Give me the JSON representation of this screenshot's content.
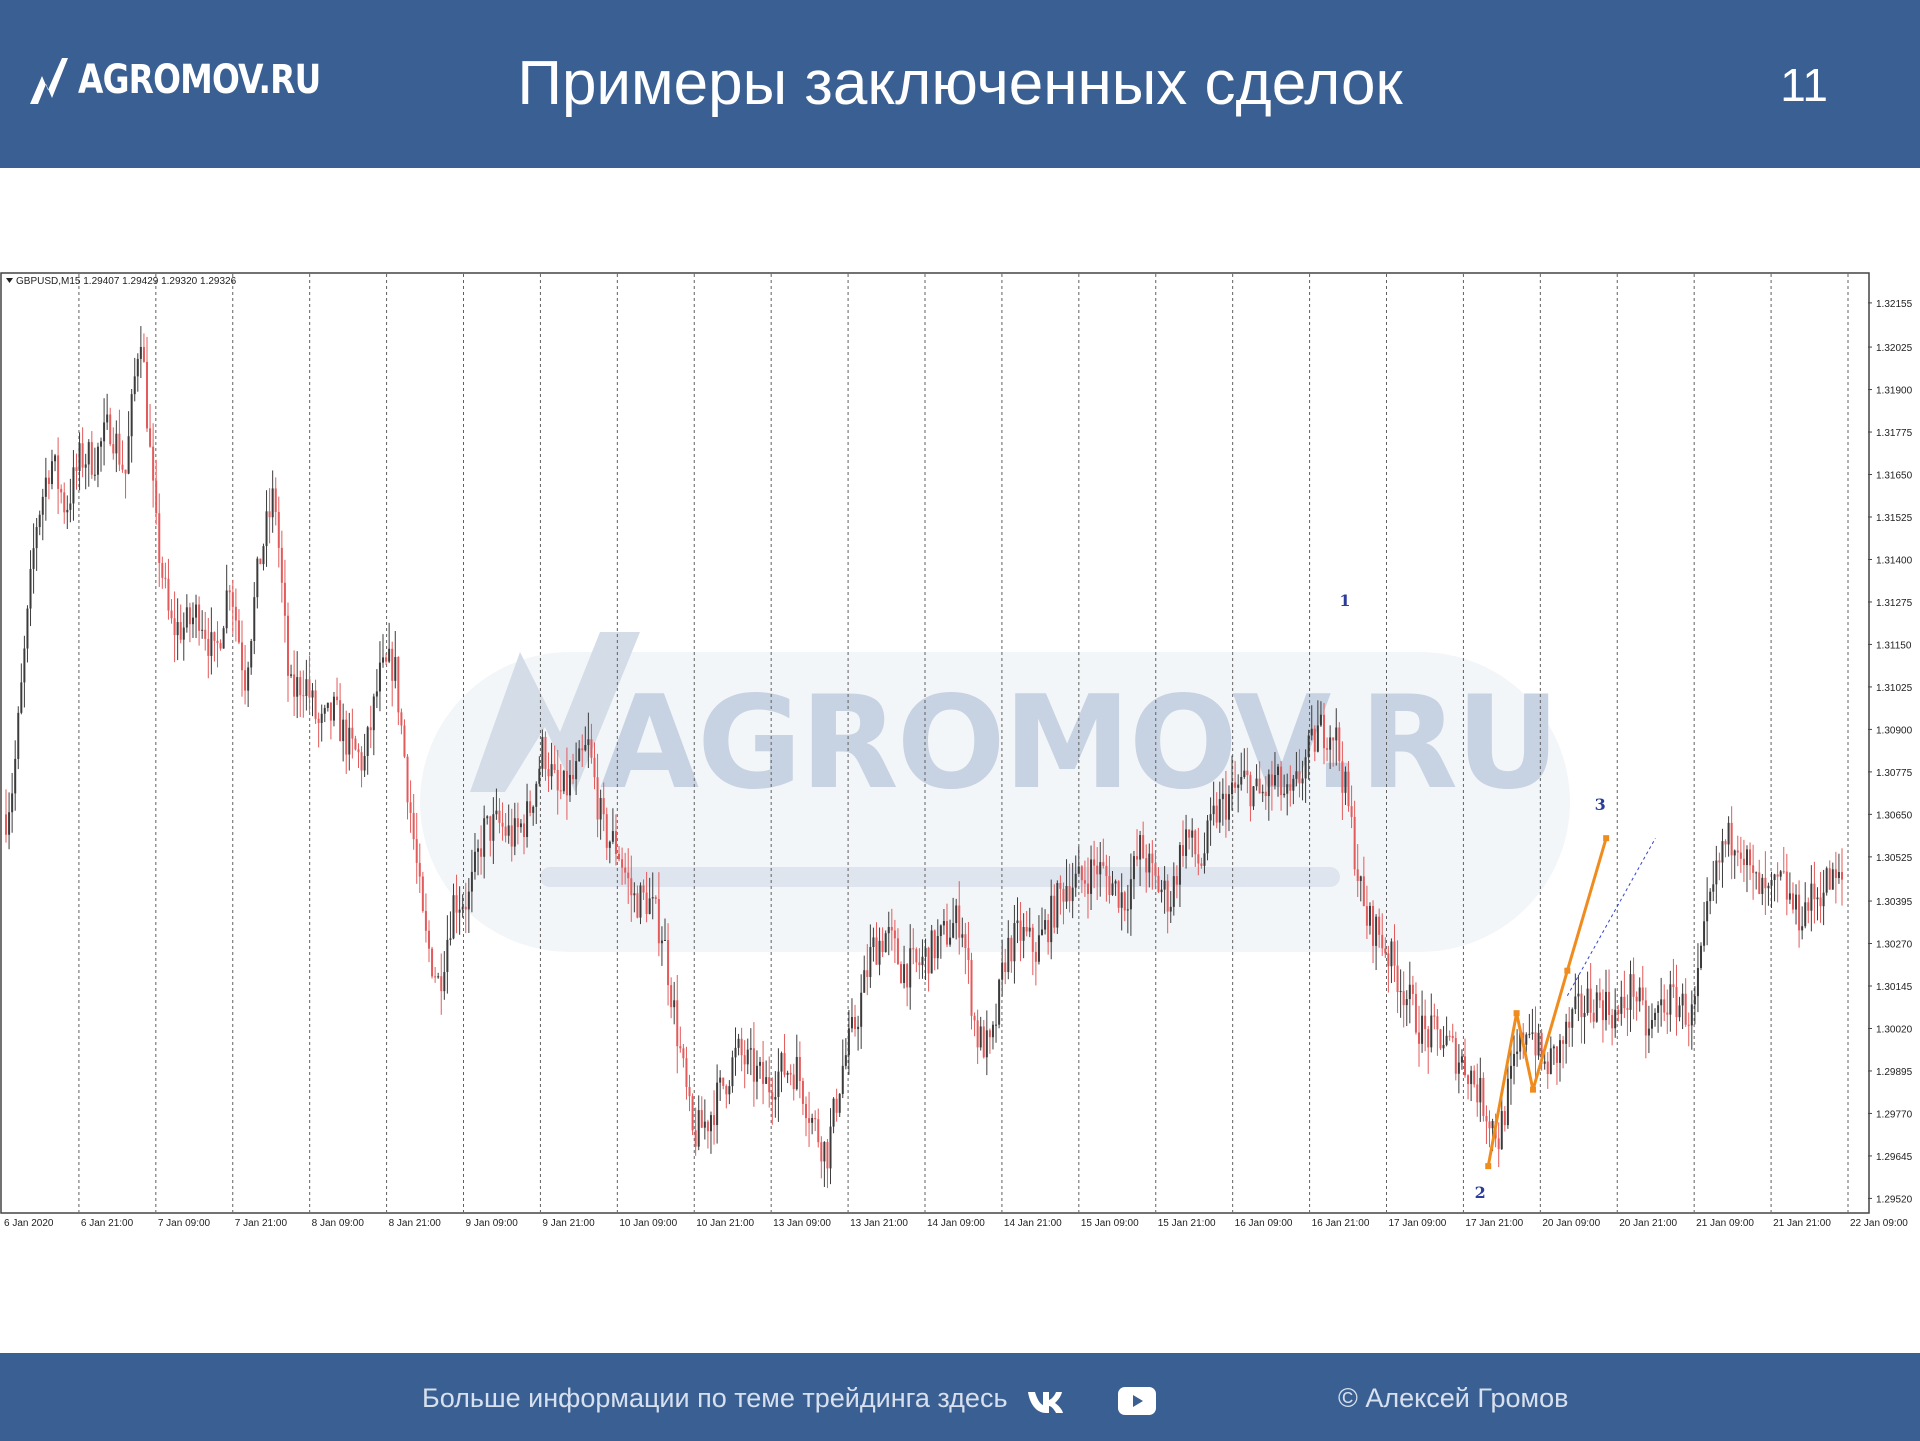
{
  "header": {
    "logo_text": "AGROMOV.RU",
    "title": "Примеры заключенных сделок",
    "slide_number": "11"
  },
  "chart": {
    "info": "GBPUSD,M15  1.29407 1.29429 1.29320 1.29326",
    "watermark": "AGROMOV.RU",
    "markers": [
      "1",
      "2",
      "3"
    ],
    "colors": {
      "bull": "#3b3b3b",
      "bear": "#e35a5a",
      "pattern": "#f08c1e",
      "grid": "#606060"
    }
  },
  "chart_data": {
    "type": "candlestick",
    "title": "GBPUSD,M15",
    "ohlc_last": {
      "open": 1.29407,
      "high": 1.29429,
      "low": 1.2932,
      "close": 1.29326
    },
    "y_ticks": [
      "1.32155",
      "1.32025",
      "1.31900",
      "1.31775",
      "1.31650",
      "1.31525",
      "1.31400",
      "1.31275",
      "1.31150",
      "1.31025",
      "1.30900",
      "1.30775",
      "1.30650",
      "1.30525",
      "1.30395",
      "1.30270",
      "1.30145",
      "1.30020",
      "1.29895",
      "1.29770",
      "1.29645",
      "1.29520"
    ],
    "x_ticks": [
      "6 Jan 2020",
      "6 Jan 21:00",
      "7 Jan 09:00",
      "7 Jan 21:00",
      "8 Jan 09:00",
      "8 Jan 21:00",
      "9 Jan 09:00",
      "9 Jan 21:00",
      "10 Jan 09:00",
      "10 Jan 21:00",
      "13 Jan 09:00",
      "13 Jan 21:00",
      "14 Jan 09:00",
      "14 Jan 21:00",
      "15 Jan 09:00",
      "15 Jan 21:00",
      "16 Jan 09:00",
      "16 Jan 21:00",
      "17 Jan 09:00",
      "17 Jan 21:00",
      "20 Jan 09:00",
      "20 Jan 21:00",
      "21 Jan 09:00",
      "21 Jan 21:00",
      "22 Jan 09:00"
    ],
    "ylim": [
      1.2948,
      1.3224
    ],
    "grid": true,
    "price_path": [
      [
        0,
        1.3065
      ],
      [
        0.5,
        1.3075
      ],
      [
        1,
        1.31
      ],
      [
        2,
        1.315
      ],
      [
        3,
        1.317
      ],
      [
        4,
        1.3155
      ],
      [
        5,
        1.317
      ],
      [
        6,
        1.317
      ],
      [
        7,
        1.318
      ],
      [
        8,
        1.3165
      ],
      [
        9,
        1.321
      ],
      [
        10,
        1.315
      ],
      [
        11,
        1.312
      ],
      [
        12,
        1.312
      ],
      [
        13,
        1.3125
      ],
      [
        14,
        1.311
      ],
      [
        15,
        1.3135
      ],
      [
        16,
        1.3105
      ],
      [
        17,
        1.314
      ],
      [
        18,
        1.316
      ],
      [
        19,
        1.31
      ],
      [
        20,
        1.3105
      ],
      [
        21,
        1.309
      ],
      [
        22,
        1.3095
      ],
      [
        23,
        1.3085
      ],
      [
        24,
        1.308
      ],
      [
        25,
        1.3105
      ],
      [
        26,
        1.311
      ],
      [
        27,
        1.307
      ],
      [
        28,
        1.303
      ],
      [
        29,
        1.3015
      ],
      [
        30,
        1.304
      ],
      [
        31,
        1.304
      ],
      [
        32,
        1.306
      ],
      [
        33,
        1.3062
      ],
      [
        34,
        1.3058
      ],
      [
        35,
        1.3065
      ],
      [
        36,
        1.3085
      ],
      [
        37,
        1.307
      ],
      [
        38,
        1.3075
      ],
      [
        39,
        1.3085
      ],
      [
        40,
        1.306
      ],
      [
        41,
        1.3055
      ],
      [
        42,
        1.304
      ],
      [
        43,
        1.304
      ],
      [
        44,
        1.303
      ],
      [
        45,
        1.3
      ],
      [
        46,
        1.297
      ],
      [
        47,
        1.2975
      ],
      [
        48,
        1.2985
      ],
      [
        49,
        1.2995
      ],
      [
        50,
        1.299
      ],
      [
        51,
        1.2985
      ],
      [
        52,
        1.299
      ],
      [
        53,
        1.299
      ],
      [
        54,
        1.2975
      ],
      [
        55,
        1.2965
      ],
      [
        56,
        1.299
      ],
      [
        57,
        1.3005
      ],
      [
        58,
        1.3025
      ],
      [
        59,
        1.303
      ],
      [
        60,
        1.302
      ],
      [
        61,
        1.302
      ],
      [
        62,
        1.3025
      ],
      [
        63,
        1.303
      ],
      [
        64,
        1.3035
      ],
      [
        65,
        1.3
      ],
      [
        66,
        1.2995
      ],
      [
        67,
        1.3025
      ],
      [
        68,
        1.303
      ],
      [
        69,
        1.3025
      ],
      [
        70,
        1.3035
      ],
      [
        71,
        1.3045
      ],
      [
        72,
        1.3045
      ],
      [
        73,
        1.305
      ],
      [
        74,
        1.3045
      ],
      [
        75,
        1.304
      ],
      [
        76,
        1.3055
      ],
      [
        77,
        1.3045
      ],
      [
        78,
        1.304
      ],
      [
        79,
        1.306
      ],
      [
        80,
        1.305
      ],
      [
        81,
        1.3065
      ],
      [
        82,
        1.307
      ],
      [
        83,
        1.3075
      ],
      [
        84,
        1.307
      ],
      [
        85,
        1.3075
      ],
      [
        86,
        1.3068
      ],
      [
        87,
        1.308
      ],
      [
        88,
        1.309
      ],
      [
        89,
        1.309
      ],
      [
        90,
        1.3065
      ],
      [
        91,
        1.3035
      ],
      [
        92,
        1.303
      ],
      [
        93,
        1.302
      ],
      [
        94,
        1.301
      ],
      [
        95,
        1.3
      ],
      [
        96,
        1.3
      ],
      [
        97,
        1.2995
      ],
      [
        98,
        1.299
      ],
      [
        99,
        1.298
      ],
      [
        100,
        1.297
      ],
      [
        101,
        1.299
      ],
      [
        102,
        1.3005
      ],
      [
        103,
        1.299
      ],
      [
        104,
        1.2995
      ],
      [
        105,
        1.3005
      ],
      [
        106,
        1.301
      ],
      [
        107,
        1.301
      ],
      [
        108,
        1.3005
      ],
      [
        109,
        1.3015
      ],
      [
        110,
        1.3
      ],
      [
        111,
        1.301
      ],
      [
        112,
        1.301
      ],
      [
        113,
        1.3005
      ],
      [
        114,
        1.3035
      ],
      [
        115,
        1.3055
      ],
      [
        116,
        1.306
      ],
      [
        117,
        1.3045
      ],
      [
        118,
        1.304
      ],
      [
        119,
        1.3045
      ],
      [
        120,
        1.3035
      ],
      [
        121,
        1.304
      ],
      [
        122,
        1.3045
      ],
      [
        123,
        1.3045
      ]
    ],
    "pattern_points": [
      {
        "label": "2",
        "x": "20 Jan ~03:00",
        "y": 1.29615
      },
      {
        "x": "20 Jan ~09:00",
        "y": 1.30065
      },
      {
        "x": "20 Jan ~12:00",
        "y": 1.2984
      },
      {
        "x": "20 Jan ~21:00",
        "y": 1.3019
      },
      {
        "label": "3",
        "x": "21 Jan ~00:00",
        "y": 1.3058
      }
    ],
    "marker_1": {
      "label": "1",
      "x": "17 Jan 09:00",
      "y": 1.31175
    }
  }
}
